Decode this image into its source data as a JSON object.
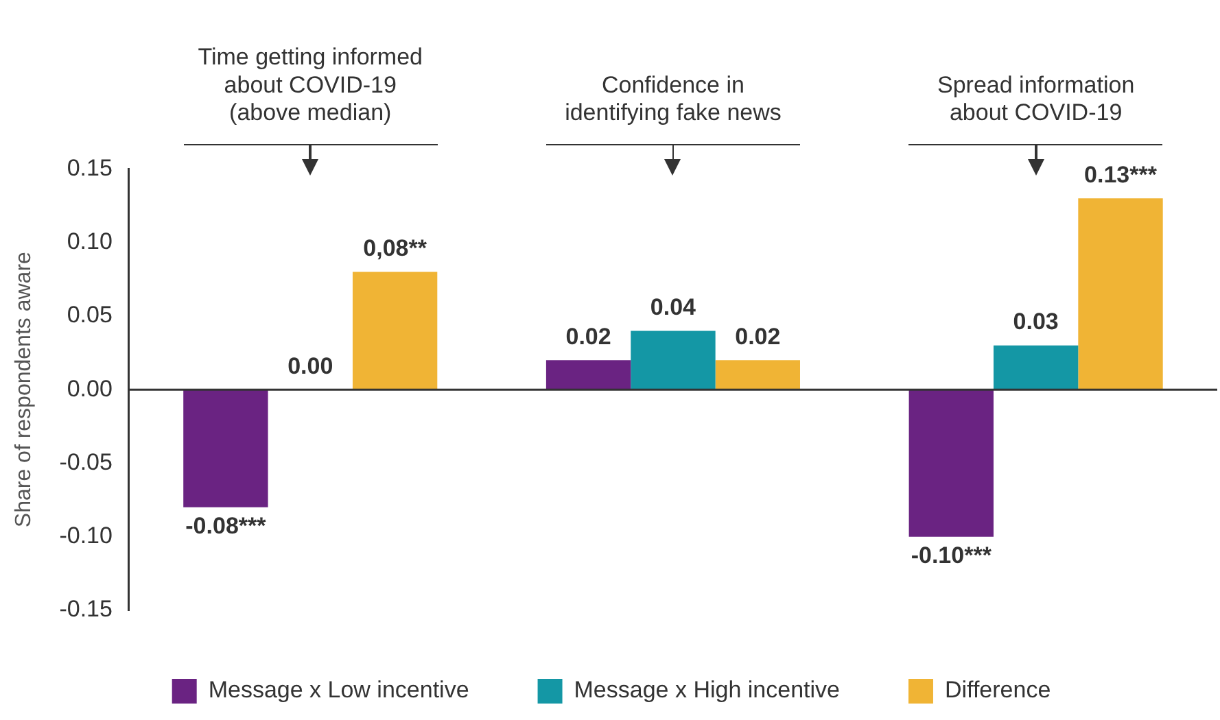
{
  "chart_data": {
    "type": "bar",
    "categories": [
      "Time getting informed\nabout COVID-19\n(above median)",
      "Confidence in\nidentifying fake news",
      "Spread information\nabout COVID-19"
    ],
    "ylabel": "Share of respondents aware",
    "series": [
      {
        "name": "Message x Low incentive",
        "color": "#6a2382",
        "values": [
          -0.08,
          0.02,
          -0.1
        ],
        "value_labels": [
          "-0.08***",
          "0.02",
          "-0.10***"
        ]
      },
      {
        "name": "Message x High incentive",
        "color": "#1497a5",
        "values": [
          0.0,
          0.04,
          0.03
        ],
        "value_labels": [
          "0.00",
          "0.04",
          "0.03"
        ]
      },
      {
        "name": "Difference",
        "color": "#f0b435",
        "values": [
          0.08,
          0.02,
          0.13
        ],
        "value_labels": [
          "0,08**",
          "0.02",
          "0.13***"
        ]
      }
    ],
    "ylim": [
      -0.15,
      0.15
    ],
    "yticks": [
      {
        "value": -0.15,
        "label": "-0.15"
      },
      {
        "value": -0.1,
        "label": "-0.10"
      },
      {
        "value": -0.05,
        "label": "-0.05"
      },
      {
        "value": 0,
        "label": "0.00"
      },
      {
        "value": 0.05,
        "label": "0.05"
      },
      {
        "value": 0.1,
        "label": "0.10"
      },
      {
        "value": 0.15,
        "label": "0.15"
      }
    ],
    "grid": false,
    "ref_lines": [
      {
        "axis": "y",
        "value": 0,
        "color": "#333333"
      }
    ],
    "legend": "bottom"
  }
}
